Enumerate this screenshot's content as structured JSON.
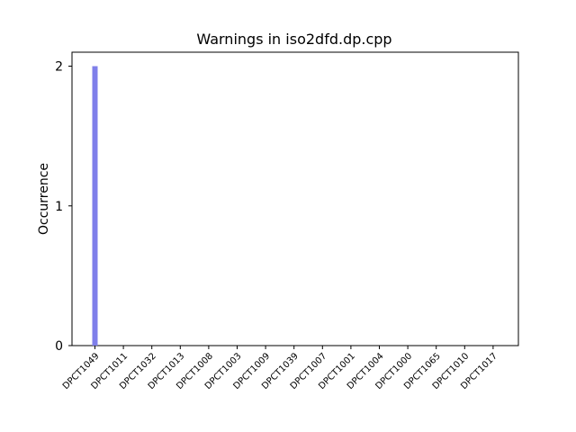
{
  "chart_data": {
    "type": "bar",
    "title": "Warnings in iso2dfd.dp.cpp",
    "xlabel": "",
    "ylabel": "Occurrence",
    "categories": [
      "DPCT1049",
      "DPCT1011",
      "DPCT1032",
      "DPCT1013",
      "DPCT1008",
      "DPCT1003",
      "DPCT1009",
      "DPCT1039",
      "DPCT1007",
      "DPCT1001",
      "DPCT1004",
      "DPCT1000",
      "DPCT1065",
      "DPCT1010",
      "DPCT1017"
    ],
    "values": [
      2,
      0,
      0,
      0,
      0,
      0,
      0,
      0,
      0,
      0,
      0,
      0,
      0,
      0,
      0
    ],
    "ylim": [
      0,
      2.1
    ],
    "yticks": [
      0,
      1,
      2
    ],
    "bar_color": "#7f7fea",
    "grid": false,
    "legend": "none"
  }
}
